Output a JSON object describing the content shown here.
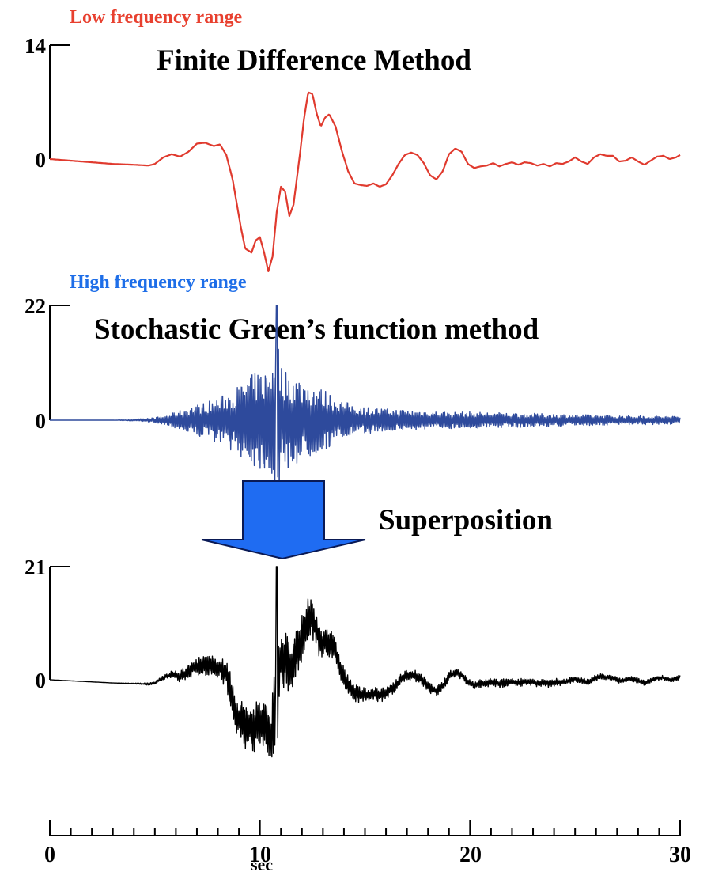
{
  "chart_data": [
    {
      "type": "line",
      "label": "Low frequency range",
      "title": "Finite Difference Method",
      "color": "#e03a2e",
      "label_color": "#e8402f",
      "y_ticks": [
        {
          "value": 14,
          "label": "14"
        },
        {
          "value": 0,
          "label": "0"
        }
      ],
      "ylim": [
        -14.5,
        14
      ],
      "x": [
        0,
        1,
        2,
        3,
        4,
        4.7,
        5.0,
        5.4,
        5.8,
        6.2,
        6.6,
        7.0,
        7.4,
        7.8,
        8.1,
        8.4,
        8.7,
        8.9,
        9.1,
        9.3,
        9.6,
        9.8,
        10.0,
        10.2,
        10.4,
        10.6,
        10.8,
        11.0,
        11.2,
        11.4,
        11.6,
        11.9,
        12.1,
        12.3,
        12.5,
        12.7,
        12.9,
        13.1,
        13.3,
        13.6,
        13.9,
        14.2,
        14.5,
        14.8,
        15.1,
        15.4,
        15.7,
        16.0,
        16.3,
        16.6,
        16.9,
        17.2,
        17.5,
        17.8,
        18.1,
        18.4,
        18.7,
        19.0,
        19.3,
        19.6,
        19.9,
        20.2,
        20.5,
        20.8,
        21.1,
        21.4,
        21.7,
        22.0,
        22.3,
        22.6,
        22.9,
        23.2,
        23.5,
        23.8,
        24.1,
        24.4,
        24.7,
        25.0,
        25.3,
        25.6,
        25.9,
        26.2,
        26.5,
        26.8,
        27.1,
        27.4,
        27.7,
        28.0,
        28.3,
        28.6,
        28.9,
        29.2,
        29.5,
        29.8,
        30
      ],
      "y": [
        0,
        -0.2,
        -0.4,
        -0.6,
        -0.7,
        -0.8,
        -0.6,
        0.2,
        0.6,
        0.3,
        0.9,
        1.9,
        2.0,
        1.6,
        1.8,
        0.5,
        -2.5,
        -5.5,
        -8.5,
        -11.0,
        -11.5,
        -10.0,
        -9.6,
        -11.5,
        -13.8,
        -12.0,
        -6.5,
        -3.4,
        -4.0,
        -7.0,
        -5.6,
        0.5,
        5.0,
        8.2,
        8.0,
        5.6,
        4.0,
        5.1,
        5.5,
        4.0,
        1.0,
        -1.5,
        -3.0,
        -3.2,
        -3.3,
        -3.0,
        -3.4,
        -3.1,
        -2.0,
        -0.6,
        0.5,
        0.8,
        0.5,
        -0.5,
        -2.0,
        -2.5,
        -1.5,
        0.6,
        1.3,
        0.9,
        -0.6,
        -1.1,
        -0.9,
        -0.8,
        -0.5,
        -0.9,
        -0.6,
        -0.4,
        -0.7,
        -0.4,
        -0.5,
        -0.8,
        -0.6,
        -0.9,
        -0.5,
        -0.6,
        -0.3,
        0.2,
        -0.3,
        -0.6,
        0.2,
        0.6,
        0.4,
        0.4,
        -0.3,
        -0.2,
        0.2,
        -0.3,
        -0.7,
        -0.2,
        0.3,
        0.4,
        0.0,
        0.2,
        0.5
      ]
    },
    {
      "type": "line",
      "label": "High frequency range",
      "title": "Stochastic Green’s function method",
      "color": "#2e4a9c",
      "label_color": "#1e6ee8",
      "y_ticks": [
        {
          "value": 22,
          "label": "22"
        },
        {
          "value": 0,
          "label": "0"
        }
      ],
      "ylim": [
        -12,
        22
      ],
      "x": [
        0,
        3.0,
        4.0,
        5.0,
        5.5,
        6.0,
        6.5,
        7.0,
        7.5,
        8.0,
        8.5,
        9.0,
        9.5,
        10.0,
        10.5,
        10.8,
        11.0,
        11.5,
        12.0,
        12.5,
        13.0,
        13.5,
        14.0,
        14.5,
        15.0,
        16.0,
        17.0,
        18.0,
        19.0,
        20.0,
        21.0,
        22.0,
        23.0,
        24.0,
        25.0,
        26.0,
        27.0,
        28.0,
        29.0,
        30.0
      ],
      "y": [
        0,
        0,
        0.15,
        0.5,
        0.9,
        1.6,
        2.4,
        3.0,
        3.6,
        4.4,
        5.4,
        6.8,
        8.5,
        9.5,
        10.0,
        22.0,
        10.5,
        9.0,
        8.0,
        7.0,
        6.0,
        4.8,
        3.6,
        3.0,
        2.6,
        2.2,
        2.0,
        1.8,
        1.6,
        1.6,
        1.5,
        1.4,
        1.3,
        1.2,
        1.1,
        1.0,
        0.9,
        0.9,
        0.8,
        0.8
      ],
      "y_kind": "amplitude envelope"
    },
    {
      "type": "line",
      "label": "",
      "title": "",
      "color": "#000000",
      "y_ticks": [
        {
          "value": 21,
          "label": "21"
        },
        {
          "value": 0,
          "label": "0"
        }
      ],
      "ylim": [
        -12,
        21
      ],
      "x": [
        0,
        1,
        2,
        3,
        4,
        4.7,
        5.0,
        5.4,
        5.8,
        6.2,
        6.6,
        7.0,
        7.4,
        7.8,
        8.1,
        8.4,
        8.7,
        8.9,
        9.1,
        9.3,
        9.6,
        9.8,
        10.0,
        10.2,
        10.4,
        10.6,
        10.8,
        11.0,
        11.2,
        11.4,
        11.6,
        11.9,
        12.1,
        12.3,
        12.5,
        12.7,
        12.9,
        13.1,
        13.3,
        13.6,
        13.9,
        14.2,
        14.5,
        14.8,
        15.1,
        15.4,
        15.7,
        16.0,
        16.3,
        16.6,
        16.9,
        17.2,
        17.5,
        17.8,
        18.1,
        18.4,
        18.7,
        19.0,
        19.3,
        19.6,
        19.9,
        20.2,
        20.5,
        20.8,
        21.1,
        21.4,
        21.7,
        22.0,
        22.3,
        22.6,
        22.9,
        23.2,
        23.5,
        23.8,
        24.1,
        24.4,
        24.7,
        25.0,
        25.3,
        25.6,
        25.9,
        26.2,
        26.5,
        26.8,
        27.1,
        27.4,
        27.7,
        28.0,
        28.3,
        28.6,
        28.9,
        29.2,
        29.5,
        29.8,
        30
      ],
      "y": [
        0,
        -0.2,
        -0.4,
        -0.6,
        -0.7,
        -0.8,
        -0.6,
        0.4,
        0.9,
        0.6,
        1.5,
        2.5,
        2.7,
        2.2,
        2.4,
        0.8,
        -3.2,
        -6.5,
        -7.5,
        -8.5,
        -9.2,
        -8.5,
        -8.3,
        -9.0,
        -10.5,
        -10.0,
        -2.0,
        4.0,
        4.0,
        2.0,
        3.0,
        6.0,
        9.0,
        12.0,
        11.0,
        9.0,
        6.5,
        7.5,
        7.0,
        5.0,
        1.5,
        -1.0,
        -2.5,
        -2.8,
        -2.9,
        -2.6,
        -2.9,
        -2.6,
        -1.6,
        -0.4,
        0.6,
        0.9,
        0.6,
        -0.4,
        -1.6,
        -2.1,
        -1.2,
        0.7,
        1.3,
        0.9,
        -0.5,
        -1.0,
        -0.8,
        -0.7,
        -0.4,
        -0.8,
        -0.5,
        -0.3,
        -0.6,
        -0.3,
        -0.4,
        -0.7,
        -0.5,
        -0.8,
        -0.4,
        -0.5,
        -0.2,
        0.2,
        -0.2,
        -0.5,
        0.2,
        0.6,
        0.4,
        0.4,
        -0.2,
        -0.1,
        0.2,
        -0.2,
        -0.6,
        -0.1,
        0.3,
        0.4,
        0.0,
        0.2,
        0.5
      ],
      "y_kind": "smooth component (displayed with added high-frequency oscillation)"
    }
  ],
  "x_axis": {
    "xlabel": "sec",
    "xlim": [
      0,
      30
    ],
    "tick_labels": [
      {
        "value": 0,
        "label": "0"
      },
      {
        "value": 10,
        "label": "10"
      },
      {
        "value": 20,
        "label": "20"
      },
      {
        "value": 30,
        "label": "30"
      }
    ],
    "minor_step": 1
  },
  "arrow": {
    "label": "Superposition",
    "color": "#1f6cf2"
  }
}
